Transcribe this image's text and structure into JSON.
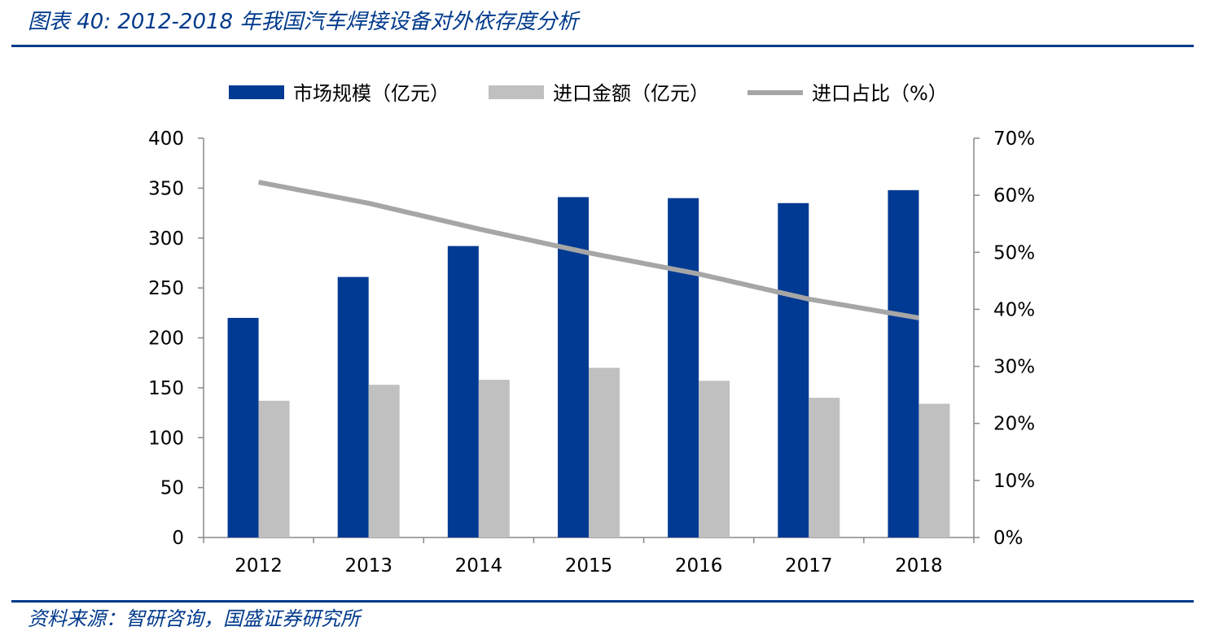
{
  "figure": {
    "title": "图表 40:  2012-2018 年我国汽车焊接设备对外依存度分析",
    "source": "资料来源：智研咨询，国盛证券研究所"
  },
  "colors": {
    "accent": "#003a8c",
    "bar_market": "#003a93",
    "bar_import": "#c0c0c0",
    "line_ratio": "#a6a6a6"
  },
  "chart_data": {
    "type": "bar",
    "categories": [
      "2012",
      "2013",
      "2014",
      "2015",
      "2016",
      "2017",
      "2018"
    ],
    "series": [
      {
        "name": "市场规模（亿元）",
        "kind": "bar",
        "axis": "left",
        "values": [
          220,
          261,
          292,
          341,
          340,
          335,
          348
        ]
      },
      {
        "name": "进口金额（亿元）",
        "kind": "bar",
        "axis": "left",
        "values": [
          137,
          153,
          158,
          170,
          157,
          140,
          134
        ]
      },
      {
        "name": "进口占比（%）",
        "kind": "line",
        "axis": "right",
        "values": [
          62.3,
          58.6,
          54.1,
          49.9,
          46.2,
          41.8,
          38.5
        ]
      }
    ],
    "y_left": {
      "min": 0,
      "max": 400,
      "step": 50,
      "ticks": [
        "0",
        "50",
        "100",
        "150",
        "200",
        "250",
        "300",
        "350",
        "400"
      ]
    },
    "y_right": {
      "min": 0,
      "max": 70,
      "step": 10,
      "ticks": [
        "0%",
        "10%",
        "20%",
        "30%",
        "40%",
        "50%",
        "60%",
        "70%"
      ]
    },
    "legend": {
      "position": "top-center"
    },
    "grid": false
  }
}
